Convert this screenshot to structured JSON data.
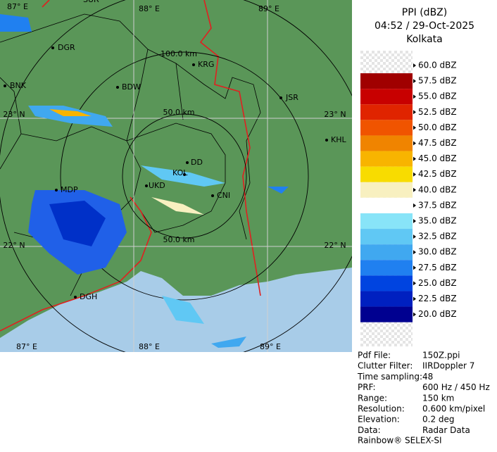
{
  "header": {
    "title": "PPI (dBZ)",
    "time": "04:52 / 29-Oct-2025",
    "site": "Kolkata"
  },
  "legend": [
    {
      "label": "60.0 dBZ",
      "color": "#ffffff"
    },
    {
      "label": "57.5 dBZ",
      "color": "#a00000"
    },
    {
      "label": "55.0 dBZ",
      "color": "#c80000"
    },
    {
      "label": "52.5 dBZ",
      "color": "#e02400"
    },
    {
      "label": "50.0 dBZ",
      "color": "#f05400"
    },
    {
      "label": "47.5 dBZ",
      "color": "#f08400"
    },
    {
      "label": "45.0 dBZ",
      "color": "#f8b400"
    },
    {
      "label": "42.5 dBZ",
      "color": "#f8dc00"
    },
    {
      "label": "40.0 dBZ",
      "color": "#f8f0c0"
    },
    {
      "label": "37.5 dBZ",
      "color": "#ffffff"
    },
    {
      "label": "35.0 dBZ",
      "color": "#88e4f8"
    },
    {
      "label": "32.5 dBZ",
      "color": "#60c8f4"
    },
    {
      "label": "30.0 dBZ",
      "color": "#40a8f0"
    },
    {
      "label": "27.5 dBZ",
      "color": "#2080f0"
    },
    {
      "label": "25.0 dBZ",
      "color": "#0044e0"
    },
    {
      "label": "22.5 dBZ",
      "color": "#0020c0"
    },
    {
      "label": "20.0 dBZ",
      "color": "#000090"
    }
  ],
  "places": [
    "SUR",
    "DGR",
    "BNK",
    "BDW",
    "KRG",
    "JSR",
    "KHL",
    "DD",
    "KOL",
    "UKD",
    "CNI",
    "MDP",
    "DGH"
  ],
  "graticule": [
    "87° E",
    "88° E",
    "89° E",
    "23° N",
    "23° N",
    "22° N",
    "22° N",
    "87° E",
    "88° E",
    "89° E"
  ],
  "ranges": [
    "100.0 km",
    "50.0 km",
    "50.0 km"
  ],
  "info": [
    [
      "Pdf File:",
      "150Z.ppi"
    ],
    [
      "Clutter Filter:",
      "IIRDoppler 7"
    ],
    [
      "Time sampling:",
      "48"
    ],
    [
      "PRF:",
      "600 Hz / 450 Hz"
    ],
    [
      "Range:",
      "150 km"
    ],
    [
      "Resolution:",
      "0.600 km/pixel"
    ],
    [
      "Elevation:",
      "0.2 deg"
    ],
    [
      "Data:",
      "Radar Data"
    ]
  ],
  "footer": "Rainbow® SELEX-SI"
}
